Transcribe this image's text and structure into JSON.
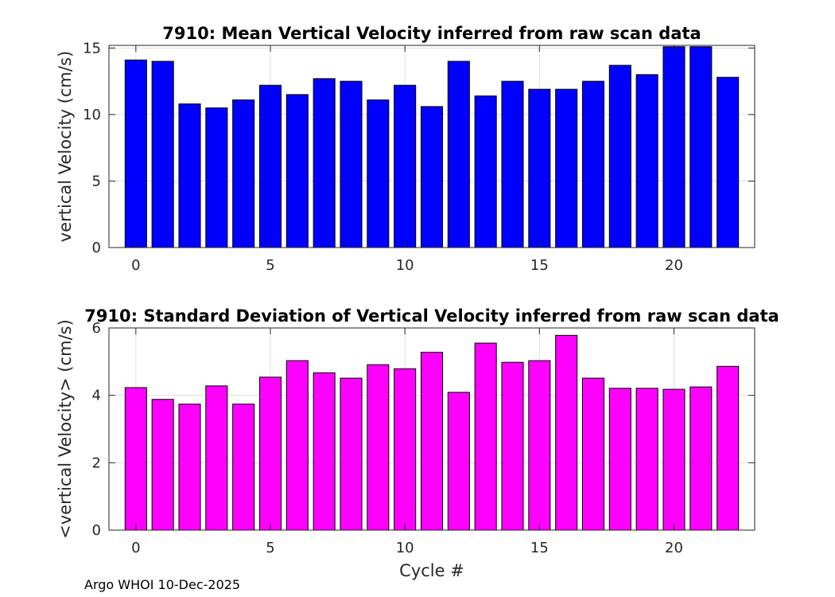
{
  "chart_data": [
    {
      "type": "bar",
      "title": "7910: Mean Vertical Velocity inferred from raw scan data",
      "xlabel": "",
      "ylabel": "vertical Velocity (cm/s)",
      "x": [
        0,
        1,
        2,
        3,
        4,
        5,
        6,
        7,
        8,
        9,
        10,
        11,
        12,
        13,
        14,
        15,
        16,
        17,
        18,
        19,
        20,
        21,
        22
      ],
      "values": [
        14.1,
        14.0,
        10.8,
        10.5,
        11.1,
        12.2,
        11.5,
        12.7,
        12.5,
        11.1,
        12.2,
        10.6,
        14.0,
        11.4,
        12.5,
        11.9,
        11.9,
        12.5,
        13.7,
        13.0,
        15.1,
        15.1,
        12.8
      ],
      "xlim": [
        -1,
        23
      ],
      "ylim": [
        0,
        15.2
      ],
      "xticks": [
        "0",
        "5",
        "10",
        "15",
        "20"
      ],
      "yticks": [
        "0",
        "5",
        "10",
        "15"
      ],
      "color": "#0000ff",
      "grid": true
    },
    {
      "type": "bar",
      "title": "7910: Standard Deviation of Vertical Velocity inferred from raw scan data",
      "xlabel": "Cycle #",
      "ylabel": "<vertical Velocity> (cm/s)",
      "x": [
        0,
        1,
        2,
        3,
        4,
        5,
        6,
        7,
        8,
        9,
        10,
        11,
        12,
        13,
        14,
        15,
        16,
        17,
        18,
        19,
        20,
        21,
        22
      ],
      "values": [
        4.23,
        3.88,
        3.74,
        4.28,
        3.74,
        4.54,
        5.03,
        4.67,
        4.51,
        4.91,
        4.79,
        5.28,
        4.09,
        5.55,
        4.98,
        5.03,
        5.78,
        4.51,
        4.21,
        4.21,
        4.18,
        4.25,
        4.86
      ],
      "xlim": [
        -1,
        23
      ],
      "ylim": [
        0,
        6
      ],
      "xticks": [
        "0",
        "5",
        "10",
        "15",
        "20"
      ],
      "yticks": [
        "0",
        "2",
        "4",
        "6"
      ],
      "color": "#ff00ff",
      "grid": true
    }
  ],
  "footer": "Argo WHOI 10-Dec-2025"
}
